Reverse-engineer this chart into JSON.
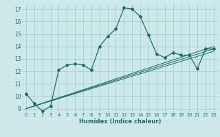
{
  "title": "",
  "xlabel": "Humidex (Indice chaleur)",
  "background_color": "#cce8e8",
  "grid_color": "#aacccc",
  "line_color": "#1a6b6b",
  "xlim": [
    -0.5,
    23.5
  ],
  "ylim": [
    8.7,
    17.4
  ],
  "yticks": [
    9,
    10,
    11,
    12,
    13,
    14,
    15,
    16,
    17
  ],
  "xticks": [
    0,
    1,
    2,
    3,
    4,
    5,
    6,
    7,
    8,
    9,
    10,
    11,
    12,
    13,
    14,
    15,
    16,
    17,
    18,
    19,
    20,
    21,
    22,
    23
  ],
  "series_main": {
    "x": [
      0,
      1,
      2,
      3,
      4,
      5,
      6,
      7,
      8,
      9,
      10,
      11,
      12,
      13,
      14,
      15,
      16,
      17,
      18,
      19,
      20,
      21,
      22,
      23
    ],
    "y": [
      10.2,
      9.4,
      8.8,
      9.2,
      12.1,
      12.5,
      12.6,
      12.5,
      12.1,
      14.0,
      14.8,
      15.4,
      17.1,
      17.0,
      16.4,
      14.9,
      13.4,
      13.1,
      13.5,
      13.3,
      13.3,
      12.2,
      13.8,
      13.8
    ]
  },
  "series_reg": [
    {
      "x": [
        0,
        23
      ],
      "y": [
        9.0,
        13.6
      ]
    },
    {
      "x": [
        0,
        23
      ],
      "y": [
        9.0,
        13.8
      ]
    },
    {
      "x": [
        0,
        23
      ],
      "y": [
        9.0,
        14.0
      ]
    }
  ]
}
